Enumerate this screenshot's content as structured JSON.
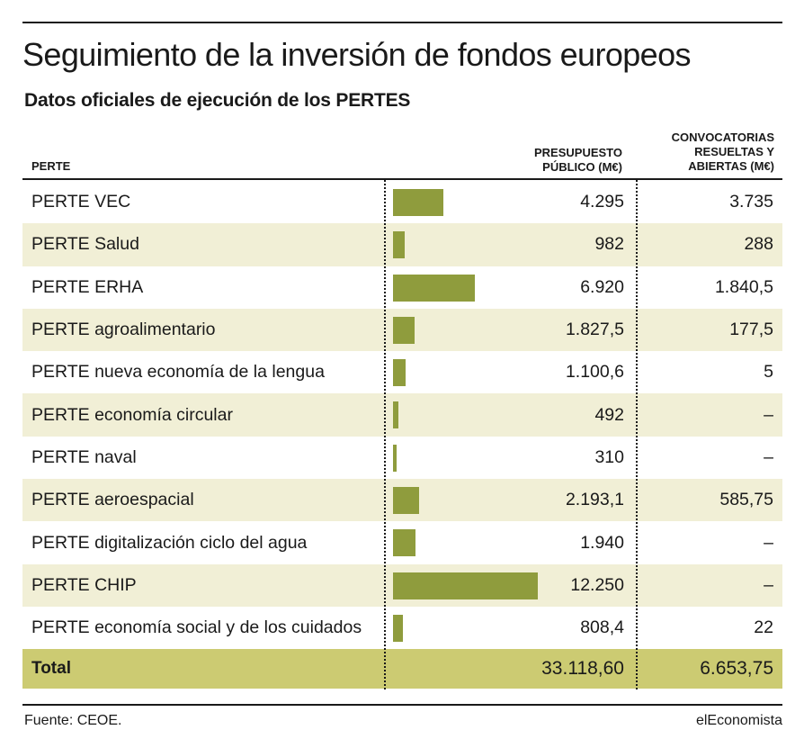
{
  "title": "Seguimiento de la inversión de fondos europeos",
  "subtitle": "Datos oficiales de ejecución de los PERTES",
  "headers": {
    "perte": "PERTE",
    "presupuesto_l1": "PRESUPUESTO",
    "presupuesto_l2": "PÚBLICO (M€)",
    "convocatorias_l1": "CONVOCATORIAS",
    "convocatorias_l2": "RESUELTAS Y",
    "convocatorias_l3": "ABIERTAS (M€)"
  },
  "rows": [
    {
      "name": "PERTE VEC",
      "presupuesto": "4.295",
      "convocatorias": "3.735"
    },
    {
      "name": "PERTE Salud",
      "presupuesto": "982",
      "convocatorias": "288"
    },
    {
      "name": "PERTE ERHA",
      "presupuesto": "6.920",
      "convocatorias": "1.840,5"
    },
    {
      "name": "PERTE agroalimentario",
      "presupuesto": "1.827,5",
      "convocatorias": "177,5"
    },
    {
      "name": "PERTE nueva economía de la lengua",
      "presupuesto": "1.100,6",
      "convocatorias": "5"
    },
    {
      "name": "PERTE economía circular",
      "presupuesto": "492",
      "convocatorias": "–"
    },
    {
      "name": "PERTE naval",
      "presupuesto": "310",
      "convocatorias": "–"
    },
    {
      "name": "PERTE aeroespacial",
      "presupuesto": "2.193,1",
      "convocatorias": "585,75"
    },
    {
      "name": "PERTE digitalización ciclo del agua",
      "presupuesto": "1.940",
      "convocatorias": "–"
    },
    {
      "name": "PERTE CHIP",
      "presupuesto": "12.250",
      "convocatorias": "–"
    },
    {
      "name": "PERTE economía social y de los cuidados",
      "presupuesto": "808,4",
      "convocatorias": "22"
    }
  ],
  "total": {
    "label": "Total",
    "presupuesto": "33.118,60",
    "convocatorias": "6.653,75"
  },
  "footer": {
    "source": "Fuente: CEOE.",
    "brand": "elEconomista"
  },
  "colors": {
    "bar": "#8f9c3d",
    "row_shade": "#f1efd6",
    "total_bg": "#cccb72"
  },
  "chart_data": {
    "type": "bar",
    "categories": [
      "PERTE VEC",
      "PERTE Salud",
      "PERTE ERHA",
      "PERTE agroalimentario",
      "PERTE nueva economía de la lengua",
      "PERTE economía circular",
      "PERTE naval",
      "PERTE aeroespacial",
      "PERTE digitalización ciclo del agua",
      "PERTE CHIP",
      "PERTE economía social y de los cuidados"
    ],
    "values": [
      4295,
      982,
      6920,
      1827.5,
      1100.6,
      492,
      310,
      2193.1,
      1940,
      12250,
      808.4
    ],
    "orientation": "horizontal",
    "xlim": [
      0,
      12250
    ]
  }
}
